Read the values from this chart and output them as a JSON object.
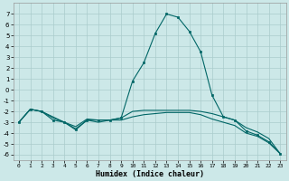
{
  "xlabel": "Humidex (Indice chaleur)",
  "background_color": "#cce8e8",
  "grid_color": "#aacccc",
  "line_color": "#006666",
  "x": [
    0,
    1,
    2,
    3,
    4,
    5,
    6,
    7,
    8,
    9,
    10,
    11,
    12,
    13,
    14,
    15,
    16,
    17,
    18,
    19,
    20,
    21,
    22,
    23
  ],
  "line1": [
    -3.0,
    -1.8,
    -2.0,
    -2.8,
    -3.0,
    -3.7,
    -2.8,
    -2.8,
    -2.8,
    -2.6,
    0.8,
    2.5,
    5.2,
    7.0,
    6.7,
    5.4,
    3.5,
    -0.5,
    -2.5,
    -2.8,
    -3.8,
    -4.2,
    -4.8,
    -5.9
  ],
  "line2": [
    -3.0,
    -1.8,
    -2.0,
    -2.6,
    -3.0,
    -3.6,
    -2.8,
    -3.0,
    -2.8,
    -2.8,
    -2.5,
    -2.3,
    -2.2,
    -2.1,
    -2.1,
    -2.1,
    -2.3,
    -2.7,
    -3.0,
    -3.3,
    -4.0,
    -4.3,
    -4.9,
    -5.9
  ],
  "line3": [
    -3.0,
    -1.8,
    -2.0,
    -2.5,
    -3.0,
    -3.4,
    -2.7,
    -2.8,
    -2.8,
    -2.6,
    -2.0,
    -1.9,
    -1.9,
    -1.9,
    -1.9,
    -1.9,
    -2.0,
    -2.2,
    -2.5,
    -2.8,
    -3.5,
    -3.9,
    -4.5,
    -5.9
  ],
  "ylim": [
    -6.5,
    8.0
  ],
  "xlim": [
    -0.5,
    23.5
  ],
  "yticks": [
    -6,
    -5,
    -4,
    -3,
    -2,
    -1,
    0,
    1,
    2,
    3,
    4,
    5,
    6,
    7
  ],
  "xticks": [
    0,
    1,
    2,
    3,
    4,
    5,
    6,
    7,
    8,
    9,
    10,
    11,
    12,
    13,
    14,
    15,
    16,
    17,
    18,
    19,
    20,
    21,
    22,
    23
  ],
  "xtick_labels": [
    "0",
    "1",
    "2",
    "3",
    "4",
    "5",
    "6",
    "7",
    "8",
    "9",
    "10",
    "11",
    "12",
    "13",
    "14",
    "15",
    "16",
    "17",
    "18",
    "19",
    "20",
    "21",
    "22",
    "23"
  ]
}
